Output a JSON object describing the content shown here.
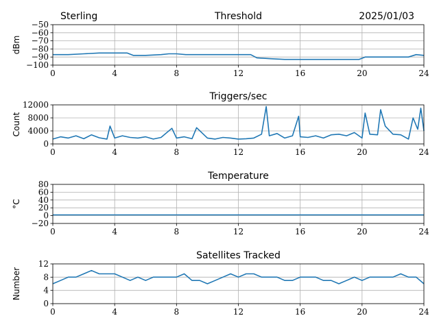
{
  "header": {
    "site": "Sterling",
    "date": "2025/01/03"
  },
  "chart_data": [
    {
      "type": "line",
      "title": "Threshold",
      "ylabel": "dBm",
      "xlim": [
        0,
        24
      ],
      "ylim": [
        -100,
        -50
      ],
      "xticks": [
        0,
        4,
        8,
        12,
        16,
        20,
        24
      ],
      "yticks": [
        -100,
        -90,
        -80,
        -70,
        -60,
        -50
      ],
      "grid": true,
      "color": "#1f77b4",
      "series": [
        {
          "x": [
            0,
            1,
            2,
            3,
            4,
            4.8,
            5.2,
            6,
            7,
            7.5,
            8,
            8.6,
            9,
            10,
            11,
            12,
            12.8,
            13.2,
            14,
            15,
            16,
            17,
            18,
            19,
            19.8,
            20.2,
            21,
            22,
            22.5,
            23,
            23.5,
            24
          ],
          "y": [
            -87,
            -87,
            -86,
            -85,
            -85,
            -85,
            -88,
            -88,
            -87,
            -86,
            -86,
            -87,
            -87,
            -87,
            -87,
            -87,
            -87,
            -91,
            -92,
            -93,
            -93,
            -93,
            -93,
            -93,
            -93,
            -90,
            -90,
            -90,
            -90,
            -90,
            -87,
            -88
          ]
        }
      ]
    },
    {
      "type": "line",
      "title": "Triggers/sec",
      "ylabel": "Count",
      "xlim": [
        0,
        24
      ],
      "ylim": [
        0,
        12000
      ],
      "xticks": [
        0,
        4,
        8,
        12,
        16,
        20,
        24
      ],
      "yticks": [
        0,
        4000,
        8000,
        12000
      ],
      "grid": true,
      "color": "#1f77b4",
      "series": [
        {
          "x": [
            0,
            0.5,
            1,
            1.5,
            2,
            2.5,
            3,
            3.5,
            3.7,
            4,
            4.5,
            5,
            5.5,
            6,
            6.5,
            7,
            7.7,
            8,
            8.5,
            9,
            9.3,
            10,
            10.5,
            11,
            11.5,
            12,
            12.5,
            13,
            13.5,
            13.8,
            14,
            14.5,
            15,
            15.5,
            15.9,
            16,
            16.5,
            17,
            17.5,
            18,
            18.5,
            19,
            19.5,
            20,
            20.2,
            20.5,
            21,
            21.2,
            21.5,
            22,
            22.5,
            23,
            23.3,
            23.6,
            23.8,
            24
          ],
          "y": [
            1500,
            2200,
            1800,
            2500,
            1600,
            2800,
            1900,
            1500,
            5500,
            1800,
            2500,
            2000,
            1800,
            2200,
            1500,
            2000,
            4800,
            1800,
            2200,
            1600,
            5000,
            1800,
            1500,
            2000,
            1800,
            1500,
            1600,
            1800,
            3000,
            11500,
            2500,
            3200,
            1800,
            2500,
            8500,
            2200,
            2000,
            2500,
            1800,
            2800,
            3000,
            2500,
            3500,
            1800,
            9500,
            3000,
            2800,
            10500,
            5500,
            3000,
            2800,
            1500,
            8000,
            4500,
            11000,
            4000
          ]
        }
      ]
    },
    {
      "type": "line",
      "title": "Temperature",
      "ylabel": "°C",
      "xlim": [
        0,
        24
      ],
      "ylim": [
        -20,
        80
      ],
      "xticks": [
        0,
        4,
        8,
        12,
        16,
        20,
        24
      ],
      "yticks": [
        -20,
        0,
        20,
        40,
        60,
        80
      ],
      "grid": true,
      "color": "#1f77b4",
      "series": [
        {
          "x": [
            0,
            24
          ],
          "y": [
            2,
            2
          ]
        }
      ]
    },
    {
      "type": "line",
      "title": "Satellites Tracked",
      "ylabel": "Number",
      "xlim": [
        0,
        24
      ],
      "ylim": [
        0,
        12
      ],
      "xticks": [
        0,
        4,
        8,
        12,
        16,
        20,
        24
      ],
      "yticks": [
        0,
        4,
        8,
        12
      ],
      "grid": true,
      "color": "#1f77b4",
      "series": [
        {
          "x": [
            0,
            0.5,
            1,
            1.5,
            2,
            2.5,
            3,
            3.5,
            4,
            4.5,
            5,
            5.5,
            6,
            6.5,
            7,
            7.5,
            8,
            8.5,
            9,
            9.5,
            10,
            10.5,
            11,
            11.5,
            12,
            12.5,
            13,
            13.5,
            14,
            14.5,
            15,
            15.5,
            16,
            16.5,
            17,
            17.5,
            18,
            18.5,
            19,
            19.5,
            20,
            20.5,
            21,
            21.5,
            22,
            22.5,
            23,
            23.5,
            24
          ],
          "y": [
            6,
            7,
            8,
            8,
            9,
            10,
            9,
            9,
            9,
            8,
            7,
            8,
            7,
            8,
            8,
            8,
            8,
            9,
            7,
            7,
            6,
            7,
            8,
            9,
            8,
            9,
            9,
            8,
            8,
            8,
            7,
            7,
            8,
            8,
            8,
            7,
            7,
            6,
            7,
            8,
            7,
            8,
            8,
            8,
            8,
            9,
            8,
            8,
            6
          ]
        }
      ]
    }
  ]
}
